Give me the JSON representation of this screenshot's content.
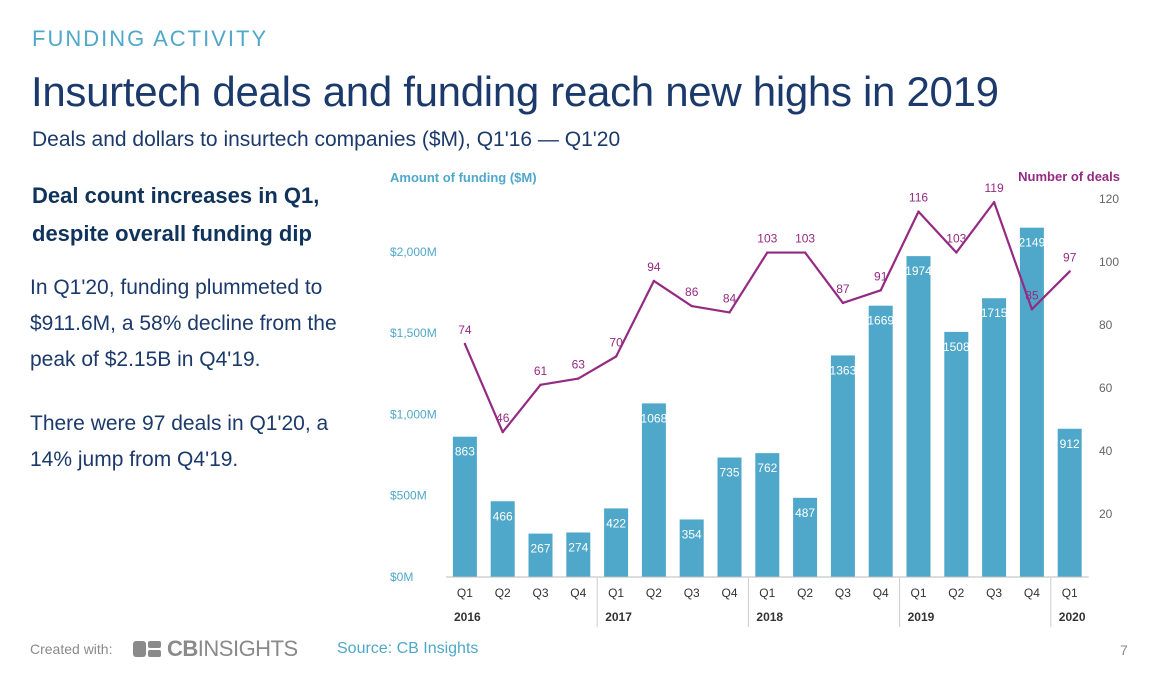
{
  "header": {
    "eyebrow": "FUNDING ACTIVITY",
    "title": "Insurtech deals and funding reach new highs in 2019",
    "subtitle": "Deals and dollars to insurtech companies ($M), Q1'16 — Q1'20"
  },
  "sidebar": {
    "callout_line1": "Deal count increases in Q1,",
    "callout_line2": "despite overall funding dip",
    "para1_line1": "In Q1'20, funding plummeted to",
    "para1_line2": "$911.6M, a 58% decline from the",
    "para1_line3": "peak of $2.15B in Q4'19.",
    "para2_line1": "There were 97 deals in Q1'20, a",
    "para2_line2": "14% jump from Q4'19."
  },
  "footer": {
    "created_with": "Created with:",
    "logo_bold": "CB",
    "logo_rest": "INSIGHTS",
    "source": "Source: CB Insights",
    "page_number": "7"
  },
  "colors": {
    "bar": "#4fa8c9",
    "line": "#952a82",
    "title": "#1b3a6b",
    "accent": "#4fa8c9"
  },
  "chart_data": {
    "type": "bar",
    "title": "",
    "left_axis_title": "Amount of funding ($M)",
    "right_axis_title": "Number of deals",
    "categories": [
      "Q1",
      "Q2",
      "Q3",
      "Q4",
      "Q1",
      "Q2",
      "Q3",
      "Q4",
      "Q1",
      "Q2",
      "Q3",
      "Q4",
      "Q1",
      "Q2",
      "Q3",
      "Q4",
      "Q1"
    ],
    "years": [
      {
        "label": "2016",
        "start": 0,
        "end": 3
      },
      {
        "label": "2017",
        "start": 4,
        "end": 7
      },
      {
        "label": "2018",
        "start": 8,
        "end": 11
      },
      {
        "label": "2019",
        "start": 12,
        "end": 15
      },
      {
        "label": "2020",
        "start": 16,
        "end": 16
      }
    ],
    "series": [
      {
        "name": "Amount of funding ($M)",
        "type": "bar",
        "axis": "left",
        "values": [
          863,
          466,
          267,
          274,
          422,
          1068,
          354,
          735,
          762,
          487,
          1363,
          1669,
          1974,
          1508,
          1715,
          2149,
          912
        ]
      },
      {
        "name": "Number of deals",
        "type": "line",
        "axis": "right",
        "values": [
          74,
          46,
          61,
          63,
          70,
          94,
          86,
          84,
          103,
          103,
          87,
          91,
          116,
          103,
          119,
          85,
          97
        ]
      }
    ],
    "left_ylim": [
      0,
      2350
    ],
    "left_ticks": [
      0,
      500,
      1000,
      1500,
      2000
    ],
    "left_tick_labels": [
      "$0M",
      "$500M",
      "$1,000M",
      "$1,500M",
      "$2,000M"
    ],
    "right_ylim": [
      0,
      120
    ],
    "right_ticks": [
      20,
      40,
      60,
      80,
      100,
      120
    ],
    "right_tick_labels": [
      "20",
      "40",
      "60",
      "80",
      "100",
      "120"
    ],
    "grid": false
  }
}
